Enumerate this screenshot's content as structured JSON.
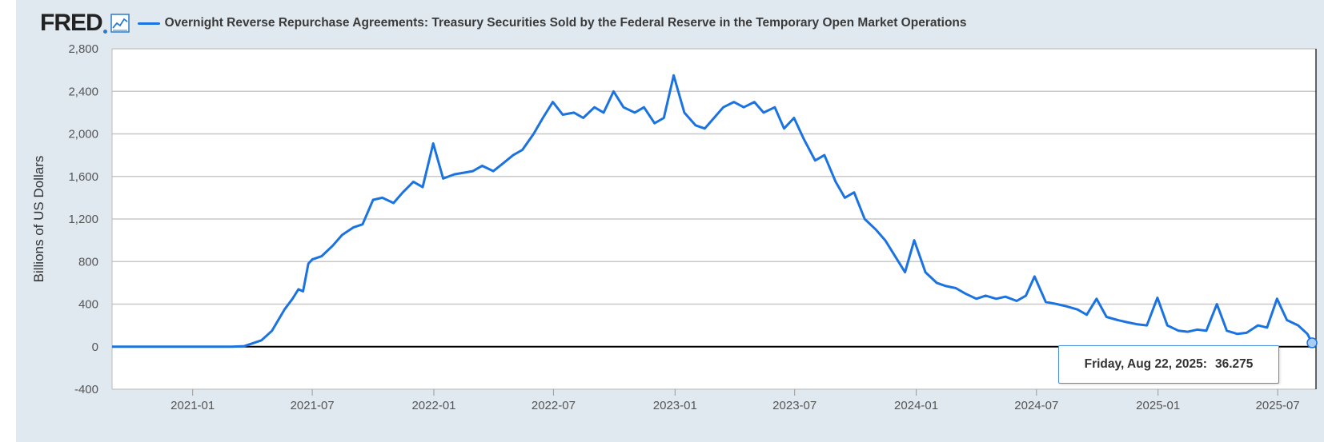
{
  "brand": {
    "logo_text": "FRED",
    "chart_icon": "line-chart-icon"
  },
  "chart_data": {
    "type": "line",
    "title": "Overnight Reverse Repurchase Agreements: Treasury Securities Sold by the Federal Reserve in the Temporary Open Market Operations",
    "ylabel": "Billions of US Dollars",
    "xlabel": "",
    "ylim": [
      -400,
      2800
    ],
    "xlim": [
      "2020-09-01",
      "2025-08-28"
    ],
    "y_ticks": [
      -400,
      0,
      400,
      800,
      1200,
      1600,
      2000,
      2400,
      2800
    ],
    "y_tick_labels": [
      "-400",
      "0",
      "400",
      "800",
      "1,200",
      "1,600",
      "2,000",
      "2,400",
      "2,800"
    ],
    "x_ticks": [
      "2021-01-01",
      "2021-07-01",
      "2022-01-01",
      "2022-07-01",
      "2023-01-01",
      "2023-07-01",
      "2024-01-01",
      "2024-07-01",
      "2025-01-01",
      "2025-07-01"
    ],
    "x_tick_labels": [
      "2021-01",
      "2021-07",
      "2022-01",
      "2022-07",
      "2023-01",
      "2023-07",
      "2024-01",
      "2024-07",
      "2025-01",
      "2025-07"
    ],
    "grid": "horizontal",
    "line_color": "#1a73e0",
    "series": [
      {
        "x": [
          "2020-09-01",
          "2020-11-01",
          "2021-01-01",
          "2021-03-01",
          "2021-03-20",
          "2021-04-15",
          "2021-05-01",
          "2021-05-20",
          "2021-06-01",
          "2021-06-10",
          "2021-06-17",
          "2021-06-25",
          "2021-07-01",
          "2021-07-15",
          "2021-08-01",
          "2021-08-15",
          "2021-09-01",
          "2021-09-15",
          "2021-10-01",
          "2021-10-15",
          "2021-11-01",
          "2021-11-15",
          "2021-12-01",
          "2021-12-15",
          "2021-12-31",
          "2022-01-15",
          "2022-02-01",
          "2022-03-01",
          "2022-03-15",
          "2022-04-01",
          "2022-04-15",
          "2022-05-01",
          "2022-05-15",
          "2022-06-01",
          "2022-06-15",
          "2022-06-30",
          "2022-07-15",
          "2022-08-01",
          "2022-08-15",
          "2022-09-01",
          "2022-09-15",
          "2022-09-30",
          "2022-10-15",
          "2022-11-01",
          "2022-11-15",
          "2022-12-01",
          "2022-12-15",
          "2022-12-30",
          "2023-01-15",
          "2023-02-01",
          "2023-02-15",
          "2023-03-01",
          "2023-03-15",
          "2023-03-31",
          "2023-04-15",
          "2023-05-01",
          "2023-05-15",
          "2023-06-01",
          "2023-06-15",
          "2023-06-30",
          "2023-07-15",
          "2023-08-01",
          "2023-08-15",
          "2023-09-01",
          "2023-09-15",
          "2023-09-29",
          "2023-10-15",
          "2023-11-01",
          "2023-11-15",
          "2023-11-30",
          "2023-12-15",
          "2023-12-29",
          "2024-01-15",
          "2024-02-01",
          "2024-02-15",
          "2024-03-01",
          "2024-03-15",
          "2024-04-01",
          "2024-04-15",
          "2024-05-01",
          "2024-05-15",
          "2024-06-01",
          "2024-06-15",
          "2024-06-28",
          "2024-07-15",
          "2024-08-01",
          "2024-08-15",
          "2024-09-01",
          "2024-09-15",
          "2024-09-30",
          "2024-10-15",
          "2024-11-01",
          "2024-11-15",
          "2024-12-01",
          "2024-12-15",
          "2024-12-31",
          "2025-01-15",
          "2025-02-01",
          "2025-02-15",
          "2025-03-01",
          "2025-03-15",
          "2025-03-31",
          "2025-04-15",
          "2025-05-01",
          "2025-05-15",
          "2025-06-01",
          "2025-06-15",
          "2025-06-30",
          "2025-07-15",
          "2025-08-01",
          "2025-08-15",
          "2025-08-22"
        ],
        "y": [
          0,
          0,
          0,
          0,
          5,
          60,
          150,
          350,
          450,
          540,
          520,
          780,
          820,
          850,
          950,
          1050,
          1120,
          1150,
          1380,
          1400,
          1350,
          1450,
          1550,
          1500,
          1910,
          1580,
          1620,
          1650,
          1700,
          1650,
          1720,
          1800,
          1850,
          2000,
          2150,
          2300,
          2180,
          2200,
          2150,
          2250,
          2200,
          2400,
          2250,
          2200,
          2250,
          2100,
          2150,
          2550,
          2200,
          2080,
          2050,
          2150,
          2250,
          2300,
          2250,
          2300,
          2200,
          2250,
          2050,
          2150,
          1950,
          1750,
          1800,
          1550,
          1400,
          1450,
          1200,
          1100,
          1000,
          850,
          700,
          1000,
          700,
          600,
          570,
          550,
          500,
          450,
          480,
          450,
          470,
          430,
          480,
          660,
          420,
          400,
          380,
          350,
          300,
          450,
          280,
          250,
          230,
          210,
          200,
          460,
          200,
          150,
          140,
          160,
          150,
          400,
          150,
          120,
          130,
          200,
          180,
          450,
          250,
          200,
          120,
          36.275
        ]
      }
    ],
    "tooltip": {
      "date_label": "Friday, Aug 22, 2025:",
      "value_label": "36.275"
    }
  }
}
